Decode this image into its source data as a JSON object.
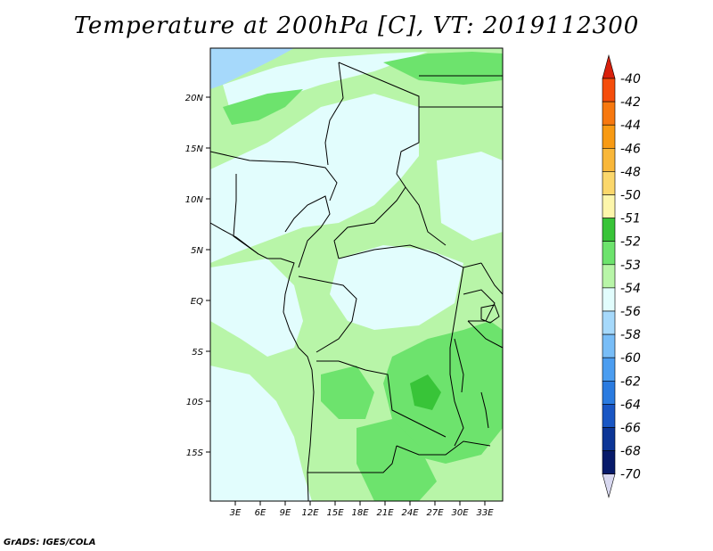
{
  "title": "Temperature at 200hPa [C], VT: 2019112300",
  "credit": "GrADS: IGES/COLA",
  "map": {
    "lat_ticks": [
      "20N",
      "15N",
      "10N",
      "5N",
      "EQ",
      "5S",
      "10S",
      "15S"
    ],
    "lon_ticks": [
      "3E",
      "6E",
      "9E",
      "12E",
      "15E",
      "18E",
      "21E",
      "24E",
      "27E",
      "30E",
      "33E"
    ]
  },
  "legend": {
    "levels": [
      {
        "label": "-40",
        "color": "#e8260e"
      },
      {
        "label": "-42",
        "color": "#f54d0c"
      },
      {
        "label": "-44",
        "color": "#f7780f"
      },
      {
        "label": "-46",
        "color": "#f89a13"
      },
      {
        "label": "-48",
        "color": "#f9b739"
      },
      {
        "label": "-50",
        "color": "#fbd76b"
      },
      {
        "label": "-51",
        "color": "#fdf6ab"
      },
      {
        "label": "-52",
        "color": "#38c438"
      },
      {
        "label": "-53",
        "color": "#6de36d"
      },
      {
        "label": "-54",
        "color": "#b8f5a8"
      },
      {
        "label": "-56",
        "color": "#e2fdfd"
      },
      {
        "label": "-58",
        "color": "#a6d9fb"
      },
      {
        "label": "-60",
        "color": "#78bdf7"
      },
      {
        "label": "-62",
        "color": "#4b9df0"
      },
      {
        "label": "-64",
        "color": "#2a7be0"
      },
      {
        "label": "-66",
        "color": "#1956c4"
      },
      {
        "label": "-68",
        "color": "#0c3596"
      },
      {
        "label": "-70",
        "color": "#071a6a"
      }
    ],
    "top_arrow_color": "#d8200c",
    "bottom_arrow_color": "#d8d8f0"
  }
}
